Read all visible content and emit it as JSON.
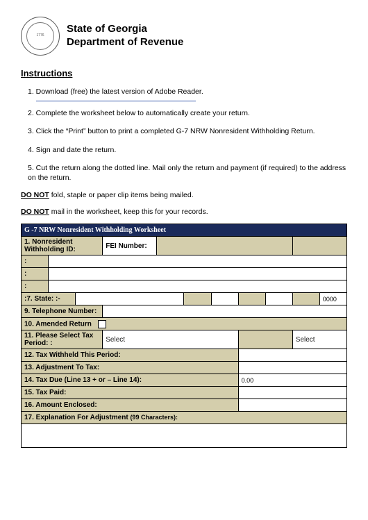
{
  "header": {
    "state": "State of Georgia",
    "dept": "Department of Revenue",
    "seal_outer": "STATE OF GEORGIA",
    "seal_inner": "1776"
  },
  "instructions_title": "Instructions",
  "instructions": [
    "1. Download (free) the latest version of Adobe Reader.",
    "2. Complete the worksheet below to automatically create your return.",
    "3. Click the “Print” button to print a completed G-7 NRW Nonresident Withholding Return.",
    "4. Sign and date the return.",
    "5. Cut the return along the dotted line. Mail only the return and payment (if required) to the address on the return."
  ],
  "warnings": {
    "donot": "DO NOT",
    "w1_rest": " fold, staple or paper clip items being mailed.",
    "w2_rest": " mail in the worksheet, keep this for your records."
  },
  "worksheet": {
    "title": "G -7 NRW Nonresident Withholding Worksheet",
    "rows": {
      "r1_label": "1.  Nonresident Withholding ID:",
      "r2_fei_label": "FEI Number:",
      "colon": ":",
      "r7_label": ":7.  State:  :-",
      "r7_value_end": "0000",
      "r9_label": "9.  Telephone Number:",
      "r10_label": "10.  Amended Return",
      "r11_label": "11.  Please Select Tax Period: :",
      "r11_select1": "Select",
      "r11_select2": "Select",
      "r12_label": "12. Tax Withheld This Period:",
      "r13_label": "13. Adjustment To Tax:",
      "r14_label": "14. Tax Due (Line 13 + or – Line 14):",
      "r14_value": "0.00",
      "r15_label": "15. Tax Paid:",
      "r16_label": "16. Amount Enclosed:",
      "r17_label": "17.  Explanation For Adjustment ",
      "r17_note": "(99 Characters):"
    },
    "colors": {
      "title_bg": "#1a2a5a",
      "title_fg": "#ffffff",
      "beige": "#d4ceac",
      "border": "#000000",
      "page_bg": "#ffffff"
    }
  }
}
